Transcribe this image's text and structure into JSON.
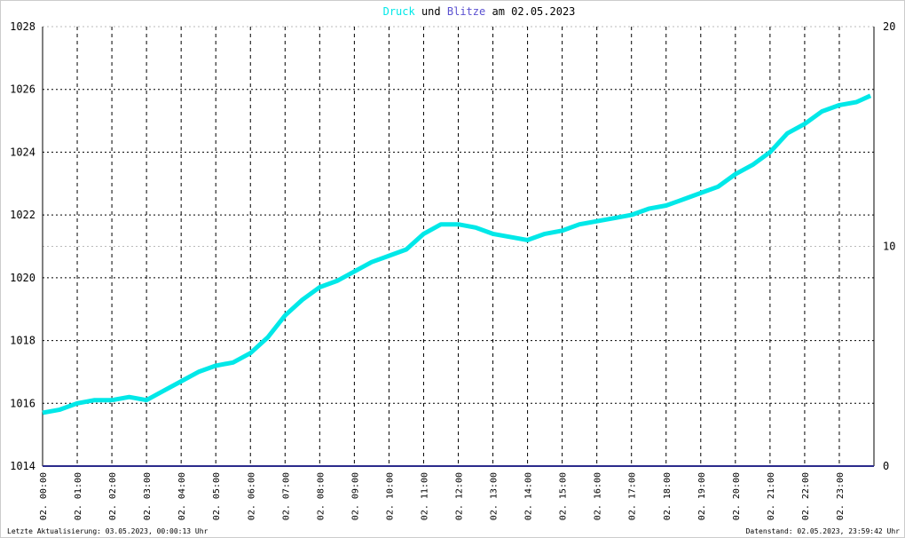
{
  "chart_data": {
    "type": "line",
    "title_parts": [
      "und",
      "am 02.05.2023"
    ],
    "xlim": [
      0,
      24
    ],
    "xticks": [
      {
        "value": 0,
        "label": "02. 00:00"
      },
      {
        "value": 1,
        "label": "02. 01:00"
      },
      {
        "value": 2,
        "label": "02. 02:00"
      },
      {
        "value": 3,
        "label": "02. 03:00"
      },
      {
        "value": 4,
        "label": "02. 04:00"
      },
      {
        "value": 5,
        "label": "02. 05:00"
      },
      {
        "value": 6,
        "label": "02. 06:00"
      },
      {
        "value": 7,
        "label": "02. 07:00"
      },
      {
        "value": 8,
        "label": "02. 08:00"
      },
      {
        "value": 9,
        "label": "02. 09:00"
      },
      {
        "value": 10,
        "label": "02. 10:00"
      },
      {
        "value": 11,
        "label": "02. 11:00"
      },
      {
        "value": 12,
        "label": "02. 12:00"
      },
      {
        "value": 13,
        "label": "02. 13:00"
      },
      {
        "value": 14,
        "label": "02. 14:00"
      },
      {
        "value": 15,
        "label": "02. 15:00"
      },
      {
        "value": 16,
        "label": "02. 16:00"
      },
      {
        "value": 17,
        "label": "02. 17:00"
      },
      {
        "value": 18,
        "label": "02. 18:00"
      },
      {
        "value": 19,
        "label": "02. 19:00"
      },
      {
        "value": 20,
        "label": "02. 20:00"
      },
      {
        "value": 21,
        "label": "02. 21:00"
      },
      {
        "value": 22,
        "label": "02. 22:00"
      },
      {
        "value": 23,
        "label": "02. 23:00"
      }
    ],
    "ylim": [
      1014,
      1028
    ],
    "yticks": [
      1014,
      1016,
      1018,
      1020,
      1022,
      1024,
      1026,
      1028
    ],
    "y2lim": [
      0,
      20
    ],
    "y2ticks": [
      0,
      10,
      20
    ],
    "grid": true,
    "series": [
      {
        "name": "Druck",
        "color": "#00e8e8",
        "x": [
          0,
          0.5,
          1,
          1.5,
          2,
          2.5,
          3,
          3.5,
          4,
          4.5,
          5,
          5.5,
          6,
          6.5,
          7,
          7.5,
          8,
          8.5,
          9,
          9.5,
          10,
          10.5,
          11,
          11.5,
          12,
          12.5,
          13,
          13.5,
          14,
          14.5,
          15,
          15.5,
          16,
          16.5,
          17,
          17.5,
          18,
          18.5,
          19,
          19.5,
          20,
          20.5,
          21,
          21.5,
          22,
          22.5,
          23,
          23.5,
          23.9
        ],
        "values": [
          1015.7,
          1015.8,
          1016.0,
          1016.1,
          1016.1,
          1016.2,
          1016.1,
          1016.4,
          1016.7,
          1017.0,
          1017.2,
          1017.3,
          1017.6,
          1018.1,
          1018.8,
          1019.3,
          1019.7,
          1019.9,
          1020.2,
          1020.5,
          1020.7,
          1020.9,
          1021.4,
          1021.7,
          1021.7,
          1021.6,
          1021.4,
          1021.3,
          1021.2,
          1021.4,
          1021.5,
          1021.7,
          1021.8,
          1021.9,
          1022.0,
          1022.2,
          1022.3,
          1022.5,
          1022.7,
          1022.9,
          1023.3,
          1023.6,
          1024.0,
          1024.6,
          1024.9,
          1025.3,
          1025.5,
          1025.6,
          1025.8
        ]
      },
      {
        "name": "Blitze",
        "color": "#2b2b8c",
        "axis": "y2",
        "x": [
          0,
          24
        ],
        "values": [
          0,
          0
        ]
      }
    ],
    "footer_left": "Letzte Aktualisierung: 03.05.2023, 00:00:13 Uhr",
    "footer_right": "Datenstand: 02.05.2023, 23:59:42 Uhr"
  }
}
